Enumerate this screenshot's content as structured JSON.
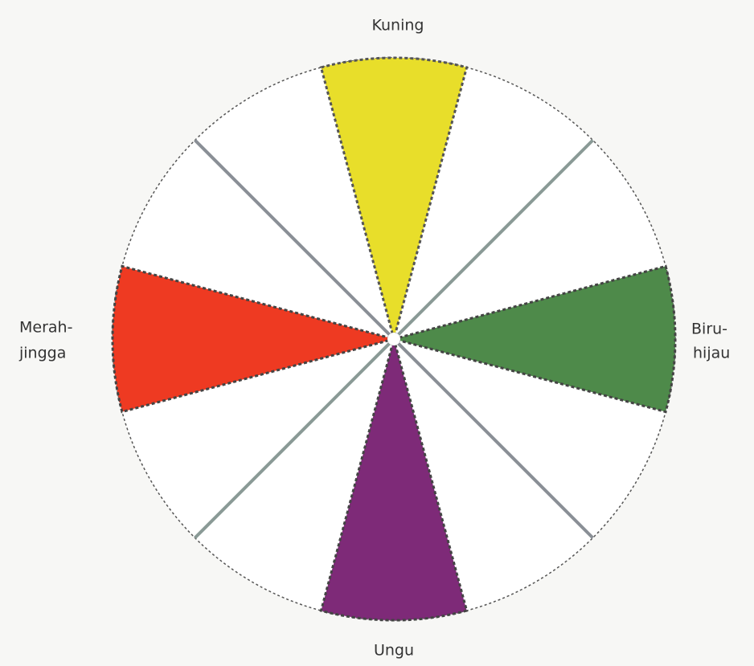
{
  "segments": [
    {
      "label": [
        "Kuning"
      ]
    },
    {
      "label": [
        "Biru-",
        "hijau"
      ]
    },
    {
      "label": [
        "Ungu"
      ]
    },
    {
      "label": [
        "Merah-",
        "jingga"
      ]
    }
  ]
}
